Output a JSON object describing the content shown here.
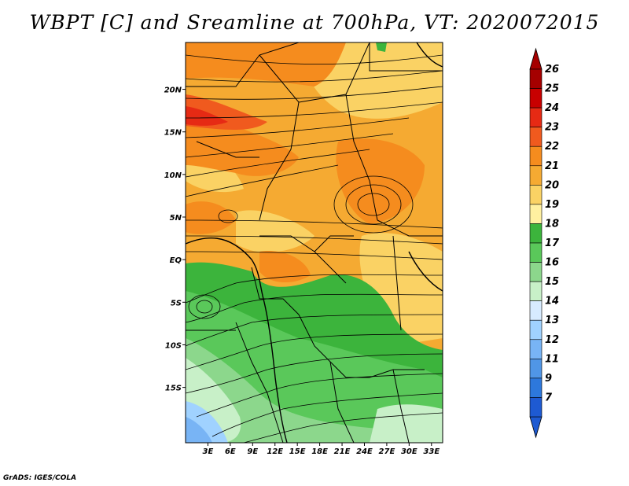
{
  "title": "WBPT [C] and Sreamline at 700hPa, VT: 2020072015",
  "credit": "GrADS: IGES/COLA",
  "map": {
    "lon_range": [
      0,
      34.5
    ],
    "lat_range": [
      -21.5,
      25.5
    ],
    "x_ticks": [
      {
        "value": 3,
        "label": "3E"
      },
      {
        "value": 6,
        "label": "6E"
      },
      {
        "value": 9,
        "label": "9E"
      },
      {
        "value": 12,
        "label": "12E"
      },
      {
        "value": 15,
        "label": "15E"
      },
      {
        "value": 18,
        "label": "18E"
      },
      {
        "value": 21,
        "label": "21E"
      },
      {
        "value": 24,
        "label": "24E"
      },
      {
        "value": 27,
        "label": "27E"
      },
      {
        "value": 30,
        "label": "30E"
      },
      {
        "value": 33,
        "label": "33E"
      }
    ],
    "y_ticks": [
      {
        "value": 20,
        "label": "20N"
      },
      {
        "value": 15,
        "label": "15N"
      },
      {
        "value": 10,
        "label": "10N"
      },
      {
        "value": 5,
        "label": "5N"
      },
      {
        "value": 0,
        "label": "EQ"
      },
      {
        "value": -5,
        "label": "5S"
      },
      {
        "value": -10,
        "label": "10S"
      },
      {
        "value": -15,
        "label": "15S"
      }
    ]
  },
  "colorbar": {
    "labels": [
      "26",
      "25",
      "24",
      "23",
      "22",
      "21",
      "20",
      "19",
      "18",
      "17",
      "16",
      "15",
      "14",
      "13",
      "12",
      "11",
      "9",
      "7"
    ],
    "colors": [
      "#a50000",
      "#c80000",
      "#e62a14",
      "#f05a1e",
      "#f58c1e",
      "#f5aa32",
      "#fad264",
      "#fff0a0",
      "#3cb43c",
      "#5ac85a",
      "#8cd78c",
      "#c8f0c8",
      "#d7ebff",
      "#a0d2ff",
      "#78b4f5",
      "#5096e6",
      "#2d78dc",
      "#1e5ad2"
    ],
    "top_arrow_color": "#a50000",
    "bottom_arrow_color": "#1e5ad2"
  }
}
